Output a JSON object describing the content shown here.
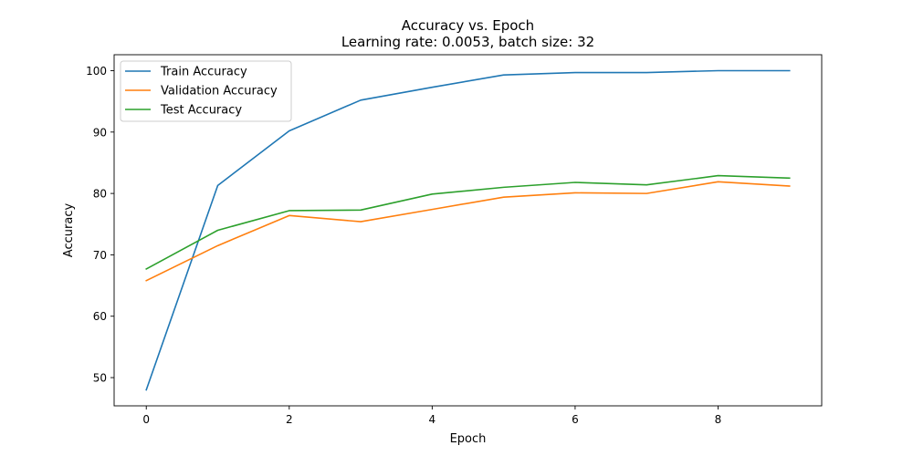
{
  "chart_data": {
    "type": "line",
    "title": "Accuracy vs. Epoch",
    "subtitle": "Learning rate: 0.0053, batch size: 32",
    "xlabel": "Epoch",
    "ylabel": "Accuracy",
    "xlim": [
      -0.45,
      9.45
    ],
    "ylim": [
      45.4,
      102.6
    ],
    "xticks": [
      0,
      2,
      4,
      6,
      8
    ],
    "yticks": [
      50,
      60,
      70,
      80,
      90,
      100
    ],
    "grid": false,
    "legend_position": "top-left",
    "x": [
      0,
      1,
      2,
      3,
      4,
      5,
      6,
      7,
      8,
      9
    ],
    "series": [
      {
        "name": "Train Accuracy",
        "color": "#1f77b4",
        "values": [
          48.0,
          81.3,
          90.2,
          95.2,
          97.3,
          99.3,
          99.7,
          99.7,
          100.0,
          100.0
        ]
      },
      {
        "name": "Validation Accuracy",
        "color": "#ff7f0e",
        "values": [
          65.8,
          71.5,
          76.4,
          75.4,
          77.4,
          79.4,
          80.1,
          80.0,
          81.9,
          81.2
        ]
      },
      {
        "name": "Test Accuracy",
        "color": "#2ca02c",
        "values": [
          67.7,
          74.0,
          77.2,
          77.3,
          79.9,
          81.0,
          81.8,
          81.4,
          82.9,
          82.5
        ]
      }
    ]
  }
}
